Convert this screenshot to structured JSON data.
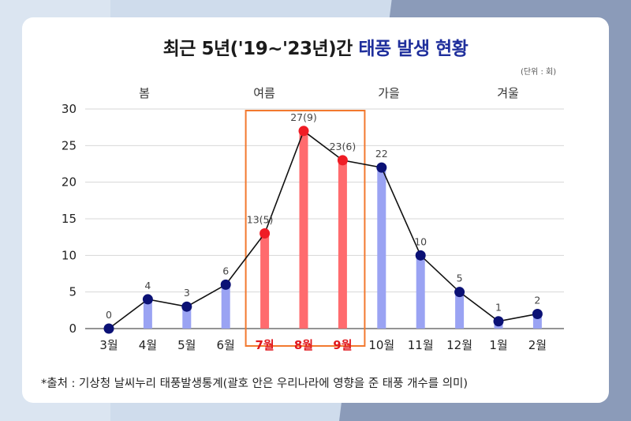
{
  "title": {
    "main": "최근 5년('19~'23년)간 ",
    "accent": "태풍 발생 현황"
  },
  "unit": "(단위 : 회)",
  "footnote": "*출처 : 기상청 날씨누리 태풍발생통계(괄호 안은 우리나라에 영향을 준 태풍 개수를 의미)",
  "seasons": [
    "봄",
    "여름",
    "가을",
    "겨울"
  ],
  "colors": {
    "bar": "#9aa3f3",
    "highlight_bar": "#ff6b6e",
    "highlight_dot": "#ef1c25",
    "dot": "#0b1175",
    "line": "#111111",
    "box": "#f2792f"
  },
  "chart_data": {
    "type": "bar",
    "categories": [
      "3월",
      "4월",
      "5월",
      "6월",
      "7월",
      "8월",
      "9월",
      "10월",
      "11월",
      "12월",
      "1월",
      "2월"
    ],
    "values": [
      0,
      4,
      3,
      6,
      13,
      27,
      23,
      22,
      10,
      5,
      1,
      2
    ],
    "data_labels": [
      "0",
      "4",
      "3",
      "6",
      "13(5)",
      "27(9)",
      "23(6)",
      "22",
      "10",
      "5",
      "1",
      "2"
    ],
    "highlighted": [
      "7월",
      "8월",
      "9월"
    ],
    "overlay": "line",
    "ylim": [
      0,
      30
    ],
    "yticks": [
      0,
      5,
      10,
      15,
      20,
      25,
      30
    ],
    "grid": true
  }
}
